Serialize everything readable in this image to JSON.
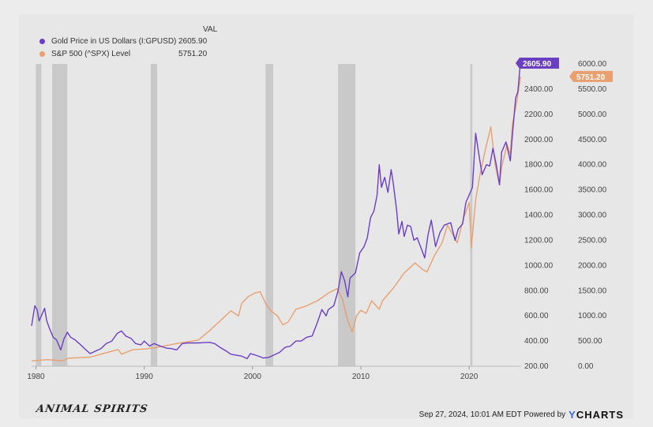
{
  "legend": {
    "header": "VAL",
    "items": [
      {
        "label": "Gold Price in US Dollars (I:GPUSD)",
        "value": "2605.90",
        "color": "#6a3fc2"
      },
      {
        "label": "S&P 500 (^SPX) Level",
        "value": "5751.20",
        "color": "#e8a070"
      }
    ]
  },
  "footer": {
    "logo": "ANIMAL SPIRITS",
    "timestamp": "Sep 27, 2024, 10:01 AM EDT Powered by",
    "brand_y": "Y",
    "brand_rest": "CHARTS"
  },
  "chart_data": {
    "type": "line",
    "x_ticks": [
      "1980",
      "1990",
      "2000",
      "2010",
      "2020"
    ],
    "x_tick_values": [
      1980,
      1990,
      2000,
      2010,
      2020
    ],
    "xlim": [
      1979.6,
      2024.8
    ],
    "y_left": {
      "ticks": [
        "200.00",
        "400.00",
        "600.00",
        "800.00",
        "1000.00",
        "1200.00",
        "1400.00",
        "1600.00",
        "1800.00",
        "2000.00",
        "2200.00",
        "2400.00"
      ],
      "lim": [
        200,
        2600
      ]
    },
    "y_right": {
      "ticks": [
        "0.00",
        "500.00",
        "1000.00",
        "1500.00",
        "2000.00",
        "2500.00",
        "3000.00",
        "3500.00",
        "4000.00",
        "4500.00",
        "5000.00",
        "5500.00",
        "6000.00"
      ],
      "lim": [
        0,
        6000
      ]
    },
    "recessions": [
      [
        1980.0,
        1980.5
      ],
      [
        1981.5,
        1982.9
      ],
      [
        1990.6,
        1991.2
      ],
      [
        2001.2,
        2001.9
      ],
      [
        2007.9,
        2009.5
      ],
      [
        2020.1,
        2020.3
      ]
    ],
    "series": [
      {
        "name": "Gold Price in US Dollars (I:GPUSD)",
        "axis": "left",
        "color": "#6a3fc2",
        "last_label": "2605.90",
        "points": [
          [
            1979.6,
            520
          ],
          [
            1979.9,
            680
          ],
          [
            1980.1,
            650
          ],
          [
            1980.3,
            560
          ],
          [
            1980.6,
            620
          ],
          [
            1980.8,
            660
          ],
          [
            1981.0,
            560
          ],
          [
            1981.3,
            490
          ],
          [
            1981.6,
            430
          ],
          [
            1981.9,
            410
          ],
          [
            1982.3,
            330
          ],
          [
            1982.6,
            420
          ],
          [
            1982.9,
            470
          ],
          [
            1983.2,
            430
          ],
          [
            1983.6,
            410
          ],
          [
            1984.0,
            380
          ],
          [
            1984.5,
            340
          ],
          [
            1985.0,
            300
          ],
          [
            1985.5,
            320
          ],
          [
            1986.0,
            340
          ],
          [
            1986.5,
            380
          ],
          [
            1987.0,
            400
          ],
          [
            1987.5,
            460
          ],
          [
            1987.9,
            480
          ],
          [
            1988.3,
            440
          ],
          [
            1988.8,
            420
          ],
          [
            1989.2,
            380
          ],
          [
            1989.7,
            370
          ],
          [
            1990.0,
            400
          ],
          [
            1990.5,
            360
          ],
          [
            1990.9,
            380
          ],
          [
            1991.5,
            360
          ],
          [
            1992.0,
            345
          ],
          [
            1992.5,
            340
          ],
          [
            1993.0,
            330
          ],
          [
            1993.5,
            380
          ],
          [
            1994.0,
            385
          ],
          [
            1995.0,
            385
          ],
          [
            1996.0,
            390
          ],
          [
            1996.5,
            380
          ],
          [
            1997.0,
            350
          ],
          [
            1997.5,
            325
          ],
          [
            1998.0,
            295
          ],
          [
            1999.0,
            280
          ],
          [
            1999.5,
            260
          ],
          [
            1999.8,
            300
          ],
          [
            2000.2,
            290
          ],
          [
            2000.7,
            275
          ],
          [
            2001.0,
            265
          ],
          [
            2001.5,
            270
          ],
          [
            2002.0,
            290
          ],
          [
            2002.5,
            310
          ],
          [
            2003.0,
            350
          ],
          [
            2003.5,
            360
          ],
          [
            2004.0,
            400
          ],
          [
            2004.5,
            400
          ],
          [
            2005.0,
            430
          ],
          [
            2005.5,
            440
          ],
          [
            2006.0,
            550
          ],
          [
            2006.4,
            650
          ],
          [
            2006.8,
            600
          ],
          [
            2007.0,
            650
          ],
          [
            2007.5,
            680
          ],
          [
            2007.9,
            800
          ],
          [
            2008.2,
            950
          ],
          [
            2008.5,
            880
          ],
          [
            2008.8,
            750
          ],
          [
            2009.0,
            900
          ],
          [
            2009.5,
            940
          ],
          [
            2009.9,
            1100
          ],
          [
            2010.3,
            1150
          ],
          [
            2010.6,
            1220
          ],
          [
            2010.9,
            1380
          ],
          [
            2011.2,
            1430
          ],
          [
            2011.5,
            1560
          ],
          [
            2011.7,
            1800
          ],
          [
            2011.9,
            1620
          ],
          [
            2012.2,
            1700
          ],
          [
            2012.5,
            1580
          ],
          [
            2012.8,
            1760
          ],
          [
            2013.0,
            1650
          ],
          [
            2013.3,
            1440
          ],
          [
            2013.5,
            1250
          ],
          [
            2013.8,
            1350
          ],
          [
            2014.0,
            1230
          ],
          [
            2014.3,
            1320
          ],
          [
            2014.6,
            1310
          ],
          [
            2014.9,
            1200
          ],
          [
            2015.2,
            1220
          ],
          [
            2015.6,
            1130
          ],
          [
            2015.9,
            1060
          ],
          [
            2016.2,
            1240
          ],
          [
            2016.5,
            1360
          ],
          [
            2016.9,
            1150
          ],
          [
            2017.3,
            1260
          ],
          [
            2017.7,
            1320
          ],
          [
            2018.0,
            1330
          ],
          [
            2018.3,
            1340
          ],
          [
            2018.7,
            1200
          ],
          [
            2019.0,
            1290
          ],
          [
            2019.4,
            1330
          ],
          [
            2019.7,
            1500
          ],
          [
            2020.0,
            1560
          ],
          [
            2020.3,
            1620
          ],
          [
            2020.6,
            2050
          ],
          [
            2020.9,
            1880
          ],
          [
            2021.2,
            1720
          ],
          [
            2021.6,
            1800
          ],
          [
            2021.9,
            1790
          ],
          [
            2022.2,
            1930
          ],
          [
            2022.5,
            1800
          ],
          [
            2022.8,
            1640
          ],
          [
            2023.0,
            1900
          ],
          [
            2023.4,
            1980
          ],
          [
            2023.8,
            1830
          ],
          [
            2024.0,
            2040
          ],
          [
            2024.3,
            2330
          ],
          [
            2024.5,
            2380
          ],
          [
            2024.75,
            2630
          ]
        ]
      },
      {
        "name": "S&P 500 (^SPX) Level",
        "axis": "right",
        "color": "#e8a070",
        "last_label": "5751.20",
        "points": [
          [
            1979.6,
            105
          ],
          [
            1981.0,
            130
          ],
          [
            1982.5,
            110
          ],
          [
            1983.0,
            160
          ],
          [
            1985.0,
            180
          ],
          [
            1986.0,
            240
          ],
          [
            1987.6,
            330
          ],
          [
            1987.9,
            240
          ],
          [
            1989.0,
            330
          ],
          [
            1990.0,
            340
          ],
          [
            1991.0,
            370
          ],
          [
            1993.0,
            450
          ],
          [
            1995.0,
            520
          ],
          [
            1996.0,
            700
          ],
          [
            1997.0,
            900
          ],
          [
            1998.0,
            1100
          ],
          [
            1998.7,
            1000
          ],
          [
            1999.0,
            1250
          ],
          [
            1999.6,
            1380
          ],
          [
            2000.2,
            1450
          ],
          [
            2000.7,
            1480
          ],
          [
            2001.2,
            1250
          ],
          [
            2001.7,
            1100
          ],
          [
            2002.3,
            1000
          ],
          [
            2002.8,
            820
          ],
          [
            2003.3,
            880
          ],
          [
            2004.0,
            1130
          ],
          [
            2005.0,
            1200
          ],
          [
            2006.0,
            1300
          ],
          [
            2007.0,
            1450
          ],
          [
            2007.8,
            1540
          ],
          [
            2008.3,
            1330
          ],
          [
            2008.8,
            900
          ],
          [
            2009.2,
            680
          ],
          [
            2009.6,
            1000
          ],
          [
            2010.0,
            1110
          ],
          [
            2010.5,
            1050
          ],
          [
            2011.0,
            1300
          ],
          [
            2011.7,
            1130
          ],
          [
            2012.0,
            1300
          ],
          [
            2013.0,
            1550
          ],
          [
            2014.0,
            1850
          ],
          [
            2015.0,
            2050
          ],
          [
            2015.7,
            1920
          ],
          [
            2016.1,
            1870
          ],
          [
            2016.8,
            2200
          ],
          [
            2017.5,
            2450
          ],
          [
            2018.0,
            2800
          ],
          [
            2018.9,
            2450
          ],
          [
            2019.5,
            2950
          ],
          [
            2020.0,
            3250
          ],
          [
            2020.2,
            2350
          ],
          [
            2020.6,
            3300
          ],
          [
            2021.0,
            3800
          ],
          [
            2021.5,
            4300
          ],
          [
            2022.0,
            4750
          ],
          [
            2022.4,
            4000
          ],
          [
            2022.8,
            3600
          ],
          [
            2023.0,
            3950
          ],
          [
            2023.5,
            4400
          ],
          [
            2023.8,
            4200
          ],
          [
            2024.0,
            4800
          ],
          [
            2024.4,
            5250
          ],
          [
            2024.75,
            5750
          ]
        ]
      }
    ]
  }
}
